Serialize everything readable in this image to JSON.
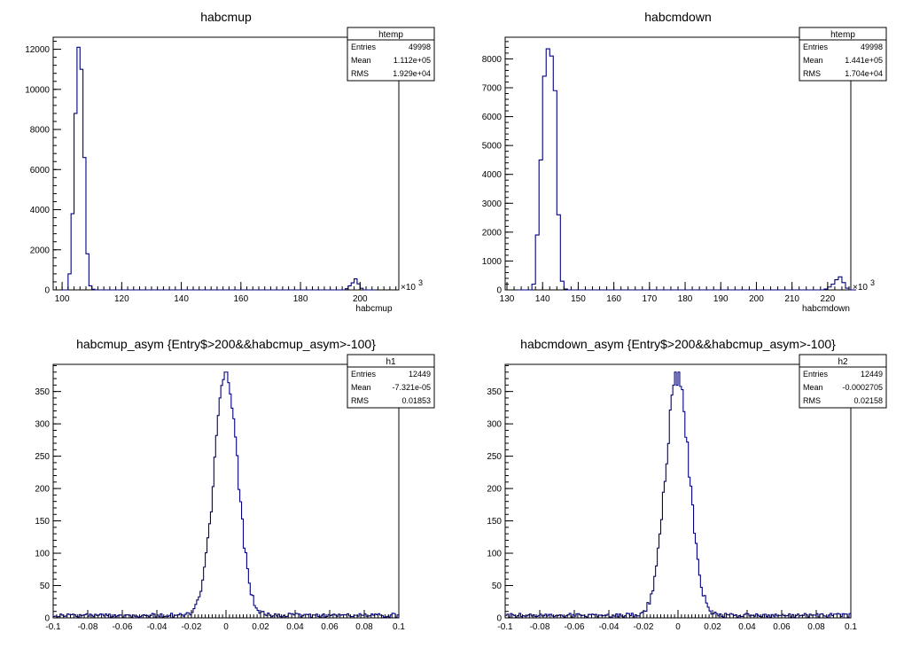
{
  "chart_data": [
    {
      "type": "histogram",
      "title": "habcmup",
      "xlabel": "habcmup",
      "x_exponent_label": "×10",
      "x_exponent_power": "3",
      "xlim": [
        97,
        213
      ],
      "ylim": [
        0,
        12600
      ],
      "xticks": [
        100,
        120,
        140,
        160,
        180,
        200
      ],
      "yticks": [
        0,
        2000,
        4000,
        6000,
        8000,
        10000,
        12000
      ],
      "stats": {
        "name": "htemp",
        "rows": [
          [
            "Entries",
            "49998"
          ],
          [
            "Mean",
            "1.112e+05"
          ],
          [
            "RMS",
            "1.929e+04"
          ]
        ]
      },
      "bins": {
        "start": 100,
        "width": 1,
        "counts": [
          0,
          0,
          800,
          3800,
          8800,
          12100,
          11000,
          6600,
          1800,
          200,
          30,
          0,
          0,
          0,
          0,
          0,
          0,
          0,
          0,
          0,
          0,
          0,
          0,
          0,
          0,
          0,
          0,
          0,
          0,
          0,
          0,
          0,
          0,
          0,
          0,
          0,
          0,
          0,
          0,
          0,
          0,
          0,
          0,
          0,
          0,
          0,
          0,
          0,
          0,
          0,
          0,
          0,
          0,
          0,
          0,
          0,
          0,
          0,
          0,
          0,
          0,
          0,
          0,
          0,
          0,
          0,
          0,
          0,
          0,
          0,
          0,
          0,
          0,
          0,
          0,
          0,
          0,
          0,
          0,
          0,
          0,
          0,
          0,
          0,
          0,
          0,
          0,
          0,
          0,
          0,
          0,
          0,
          0,
          0,
          0,
          60,
          200,
          350,
          550,
          300,
          80,
          0,
          0,
          0,
          0
        ]
      }
    },
    {
      "type": "histogram",
      "title": "habcmdown",
      "xlabel": "habcmdown",
      "x_exponent_label": "×10",
      "x_exponent_power": "3",
      "xlim": [
        129.5,
        226.5
      ],
      "ylim": [
        0,
        8750
      ],
      "xticks": [
        130,
        140,
        150,
        160,
        170,
        180,
        190,
        200,
        210,
        220
      ],
      "yticks": [
        0,
        1000,
        2000,
        3000,
        4000,
        5000,
        6000,
        7000,
        8000
      ],
      "stats": {
        "name": "htemp",
        "rows": [
          [
            "Entries",
            "49998"
          ],
          [
            "Mean",
            "1.441e+05"
          ],
          [
            "RMS",
            "1.704e+04"
          ]
        ]
      },
      "bins": {
        "start": 133,
        "width": 1,
        "counts": [
          0,
          0,
          0,
          0,
          200,
          1900,
          4500,
          7400,
          8350,
          8100,
          6900,
          2600,
          300,
          30,
          0,
          0,
          0,
          0,
          0,
          0,
          0,
          0,
          0,
          0,
          0,
          0,
          0,
          0,
          0,
          0,
          0,
          0,
          0,
          0,
          0,
          0,
          0,
          0,
          0,
          0,
          0,
          0,
          0,
          0,
          0,
          0,
          0,
          0,
          0,
          0,
          0,
          0,
          0,
          0,
          0,
          0,
          0,
          0,
          0,
          0,
          0,
          0,
          0,
          0,
          0,
          0,
          0,
          0,
          0,
          0,
          0,
          0,
          0,
          0,
          0,
          0,
          0,
          0,
          0,
          0,
          0,
          0,
          0,
          0,
          0,
          0,
          30,
          100,
          200,
          350,
          450,
          250,
          60,
          0,
          0
        ]
      }
    },
    {
      "type": "histogram",
      "title": "habcmup_asym {Entry$>200&&habcmup_asym>-100}",
      "xlabel": "",
      "xlim": [
        -0.1,
        0.1
      ],
      "ylim": [
        0,
        392
      ],
      "xticks": [
        -0.1,
        -0.08,
        -0.06,
        -0.04,
        -0.02,
        0,
        0.02,
        0.04,
        0.06,
        0.08,
        0.1
      ],
      "yticks": [
        0,
        50,
        100,
        150,
        200,
        250,
        300,
        350
      ],
      "stats": {
        "name": "h1",
        "rows": [
          [
            "Entries",
            "12449"
          ],
          [
            "Mean",
            "-7.321e-05"
          ],
          [
            "RMS",
            "0.01853"
          ]
        ]
      },
      "gauss": {
        "mu": 0.0,
        "sigma": 0.0068,
        "amp": 372,
        "nbins": 200,
        "baseline": 4
      }
    },
    {
      "type": "histogram",
      "title": "habcmdown_asym {Entry$>200&&habcmup_asym>-100}",
      "xlabel": "",
      "xlim": [
        -0.1,
        0.1
      ],
      "ylim": [
        0,
        392
      ],
      "xticks": [
        -0.1,
        -0.08,
        -0.06,
        -0.04,
        -0.02,
        0,
        0.02,
        0.04,
        0.06,
        0.08,
        0.1
      ],
      "yticks": [
        0,
        50,
        100,
        150,
        200,
        250,
        300,
        350
      ],
      "stats": {
        "name": "h2",
        "rows": [
          [
            "Entries",
            "12449"
          ],
          [
            "Mean",
            "-0.0002705"
          ],
          [
            "RMS",
            "0.02158"
          ]
        ]
      },
      "gauss": {
        "mu": -0.0003,
        "sigma": 0.0068,
        "amp": 372,
        "nbins": 200,
        "baseline": 4
      }
    }
  ],
  "colors": {
    "line": "#000080",
    "axis": "#000000"
  }
}
